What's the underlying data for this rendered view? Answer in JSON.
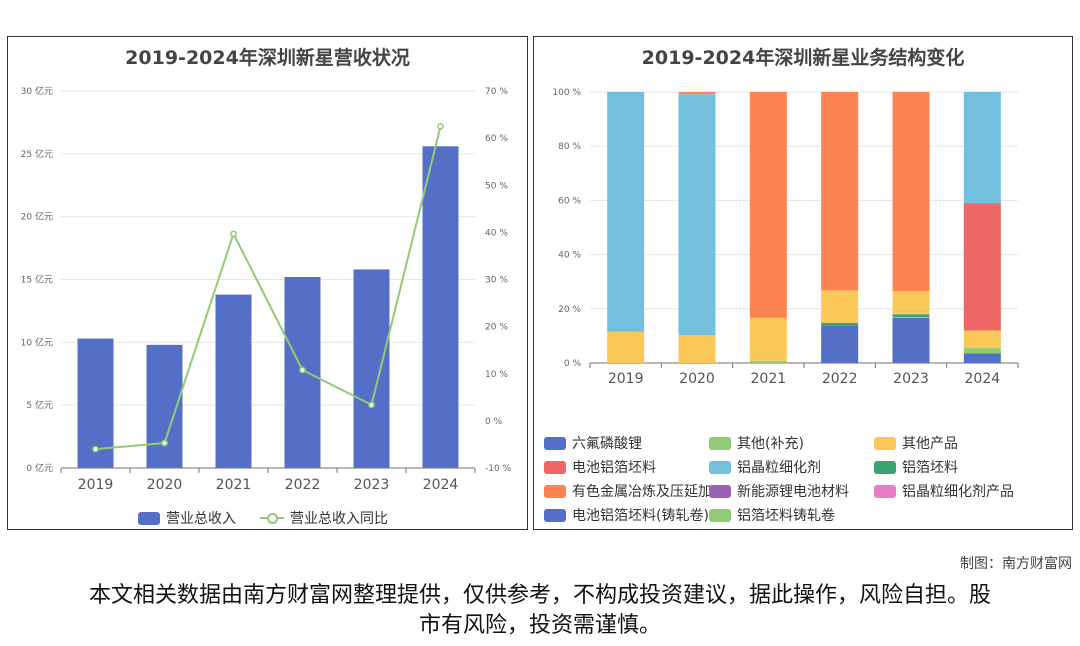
{
  "chart_data": [
    {
      "type": "bar",
      "title": "2019-2024年深圳新星营收状况",
      "categories": [
        "2019",
        "2020",
        "2021",
        "2022",
        "2023",
        "2024"
      ],
      "y_left_ticks": [
        "0 亿元",
        "5 亿元",
        "10 亿元",
        "15 亿元",
        "20 亿元",
        "25 亿元",
        "30 亿元"
      ],
      "y_right_ticks": [
        "-10 %",
        "0 %",
        "10 %",
        "20 %",
        "30 %",
        "40 %",
        "50 %",
        "60 %",
        "70 %"
      ],
      "ylim_left": [
        0,
        30
      ],
      "ylim_right": [
        -10,
        70
      ],
      "series": [
        {
          "name": "营业总收入",
          "type": "bar",
          "axis": "left",
          "color": "#5470c6",
          "values": [
            10.3,
            9.8,
            13.8,
            15.2,
            15.8,
            25.6
          ]
        },
        {
          "name": "营业总收入同比",
          "type": "line",
          "axis": "right",
          "color": "#91cc75",
          "values": [
            -6.0,
            -4.7,
            39.7,
            10.8,
            3.4,
            62.5
          ]
        }
      ],
      "grid": true,
      "legend": "bottom"
    },
    {
      "type": "bar",
      "stacked": true,
      "title": "2019-2024年深圳新星业务结构变化",
      "categories": [
        "2019",
        "2020",
        "2021",
        "2022",
        "2023",
        "2024"
      ],
      "y_ticks": [
        "0 %",
        "20 %",
        "40 %",
        "60 %",
        "80 %",
        "100 %"
      ],
      "ylim": [
        0,
        100
      ],
      "series": [
        {
          "name": "六氟磷酸锂",
          "color": "#5470c6",
          "values": [
            0,
            0,
            0,
            0,
            0,
            0
          ]
        },
        {
          "name": "其他(补充)",
          "color": "#91cc75",
          "values": [
            0,
            0,
            0,
            0,
            0,
            0
          ]
        },
        {
          "name": "其他产品",
          "color": "#fac858",
          "values": [
            11.5,
            10.3,
            15.9,
            12.0,
            8.5,
            6.5
          ]
        },
        {
          "name": "电池铝箔坯料",
          "color": "#ee6666",
          "values": [
            0,
            0,
            0,
            0,
            0,
            47.0
          ]
        },
        {
          "name": "铝晶粒细化剂",
          "color": "#73c0de",
          "values": [
            88.5,
            88.9,
            0,
            0,
            0,
            41.0
          ]
        },
        {
          "name": "铝箔坯料",
          "color": "#3ba272",
          "values": [
            0,
            0,
            0,
            1.0,
            1.0,
            0
          ]
        },
        {
          "name": "有色金属冶炼及压延加工",
          "color": "#fc8452",
          "values": [
            0,
            0.8,
            83.3,
            73.2,
            73.5,
            0
          ]
        },
        {
          "name": "新能源锂电池材料",
          "color": "#9a60b4",
          "values": [
            0,
            0,
            0,
            0,
            0,
            0
          ]
        },
        {
          "name": "铝晶粒细化剂产品",
          "color": "#ea7ccc",
          "values": [
            0,
            0,
            0,
            0,
            0,
            0
          ]
        },
        {
          "name": "电池铝箔坯料(铸轧卷)",
          "color": "#5470c6",
          "values": [
            0,
            0,
            0,
            13.8,
            16.6,
            3.5
          ]
        },
        {
          "name": "铝箔坯料铸轧卷",
          "color": "#91cc75",
          "values": [
            0,
            0,
            0.8,
            0,
            0.4,
            2.0
          ]
        }
      ],
      "grid": true,
      "legend": "bottom"
    }
  ],
  "footer": {
    "credit": "制图：南方财富网",
    "disclaimer": "本文相关数据由南方财富网整理提供，仅供参考，不构成投资建议，据此操作，风险自担。股市有风险，投资需谨慎。"
  }
}
